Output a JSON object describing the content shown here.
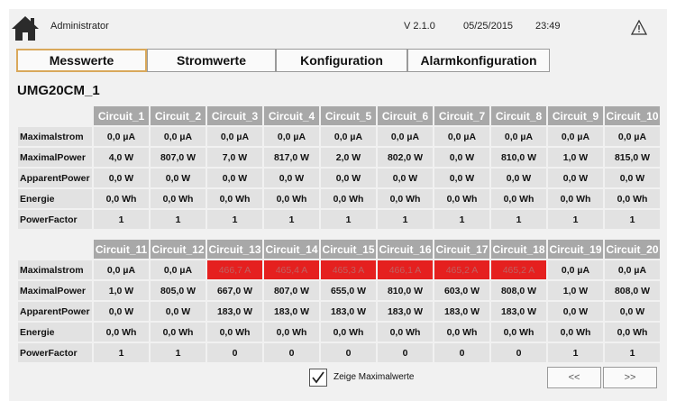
{
  "header": {
    "user": "Administrator",
    "version": "V 2.1.0",
    "date": "05/25/2015",
    "time": "23:49"
  },
  "tabs": [
    "Messwerte",
    "Stromwerte",
    "Konfiguration",
    "Alarmkonfiguration"
  ],
  "device": "UMG20CM_1",
  "row_labels": [
    "Maximalstrom",
    "MaximalPower",
    "ApparentPower",
    "Energie",
    "PowerFactor"
  ],
  "table1": {
    "columns": [
      "Circuit_1",
      "Circuit_2",
      "Circuit_3",
      "Circuit_4",
      "Circuit_5",
      "Circuit_6",
      "Circuit_7",
      "Circuit_8",
      "Circuit_9",
      "Circuit_10"
    ],
    "rows": [
      [
        "0,0 µA",
        "0,0 µA",
        "0,0 µA",
        "0,0 µA",
        "0,0 µA",
        "0,0 µA",
        "0,0 µA",
        "0,0 µA",
        "0,0 µA",
        "0,0 µA"
      ],
      [
        "4,0 W",
        "807,0 W",
        "7,0 W",
        "817,0 W",
        "2,0 W",
        "802,0 W",
        "0,0 W",
        "810,0 W",
        "1,0 W",
        "815,0 W"
      ],
      [
        "0,0 W",
        "0,0 W",
        "0,0 W",
        "0,0 W",
        "0,0 W",
        "0,0 W",
        "0,0 W",
        "0,0 W",
        "0,0 W",
        "0,0 W"
      ],
      [
        "0,0 Wh",
        "0,0 Wh",
        "0,0 Wh",
        "0,0 Wh",
        "0,0 Wh",
        "0,0 Wh",
        "0,0 Wh",
        "0,0 Wh",
        "0,0 Wh",
        "0,0 Wh"
      ],
      [
        "1",
        "1",
        "1",
        "1",
        "1",
        "1",
        "1",
        "1",
        "1",
        "1"
      ]
    ]
  },
  "table2": {
    "columns": [
      "Circuit_11",
      "Circuit_12",
      "Circuit_13",
      "Circuit_14",
      "Circuit_15",
      "Circuit_16",
      "Circuit_17",
      "Circuit_18",
      "Circuit_19",
      "Circuit_20"
    ],
    "rows": [
      [
        "0,0 µA",
        "0,0 µA",
        "466,7 A",
        "465,4 A",
        "465,3 A",
        "466,1 A",
        "465,2 A",
        "465,2 A",
        "0,0 µA",
        "0,0 µA"
      ],
      [
        "1,0 W",
        "805,0 W",
        "667,0 W",
        "807,0 W",
        "655,0 W",
        "810,0 W",
        "603,0 W",
        "808,0 W",
        "1,0 W",
        "808,0 W"
      ],
      [
        "0,0 W",
        "0,0 W",
        "183,0 W",
        "183,0 W",
        "183,0 W",
        "183,0 W",
        "183,0 W",
        "183,0 W",
        "0,0 W",
        "0,0 W"
      ],
      [
        "0,0 Wh",
        "0,0 Wh",
        "0,0 Wh",
        "0,0 Wh",
        "0,0 Wh",
        "0,0 Wh",
        "0,0 Wh",
        "0,0 Wh",
        "0,0 Wh",
        "0,0 Wh"
      ],
      [
        "1",
        "1",
        "0",
        "0",
        "0",
        "0",
        "0",
        "0",
        "1",
        "1"
      ]
    ],
    "alarm_cells": [
      [
        0,
        2
      ],
      [
        0,
        3
      ],
      [
        0,
        4
      ],
      [
        0,
        5
      ],
      [
        0,
        6
      ],
      [
        0,
        7
      ]
    ]
  },
  "alarm_color": "#e5201f",
  "active_tab_border": "#d9a85b",
  "checkbox": {
    "label": "Zeige Maximalwerte",
    "checked": true
  },
  "nav": {
    "prev": "<<",
    "next": ">>"
  }
}
